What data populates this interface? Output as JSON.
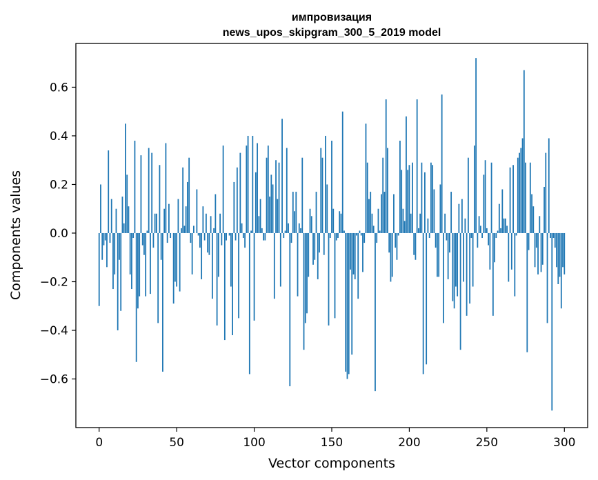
{
  "chart_data": {
    "type": "bar",
    "title": "импровизация",
    "subtitle": "news_upos_skipgram_300_5_2019 model",
    "xlabel": "Vector components",
    "ylabel": "Components values",
    "xlim": [
      -15,
      315
    ],
    "ylim": [
      -0.8,
      0.78
    ],
    "xticks": [
      0,
      50,
      100,
      150,
      200,
      250,
      300
    ],
    "yticks": [
      -0.6,
      -0.4,
      -0.2,
      0.0,
      0.2,
      0.4,
      0.6
    ],
    "xtick_labels": [
      "0",
      "50",
      "100",
      "150",
      "200",
      "250",
      "300"
    ],
    "ytick_labels": [
      "−0.6",
      "−0.4",
      "−0.2",
      "0.0",
      "0.2",
      "0.4",
      "0.6"
    ],
    "bar_color": "#1f77b4",
    "values": [
      -0.3,
      0.2,
      -0.11,
      -0.05,
      -0.03,
      -0.14,
      0.34,
      -0.04,
      0.14,
      -0.23,
      -0.17,
      0.1,
      -0.4,
      -0.11,
      -0.32,
      0.15,
      0.04,
      0.45,
      0.24,
      0.11,
      -0.17,
      -0.23,
      -0.02,
      0.38,
      -0.53,
      -0.31,
      -0.26,
      0.32,
      -0.05,
      -0.09,
      -0.26,
      0.01,
      0.35,
      -0.25,
      0.33,
      -0.06,
      0.08,
      0.08,
      -0.37,
      0.28,
      -0.11,
      -0.57,
      0.1,
      0.37,
      -0.04,
      0.12,
      -0.02,
      0.0,
      -0.29,
      -0.2,
      -0.22,
      0.14,
      -0.24,
      0.02,
      0.27,
      0.03,
      0.11,
      0.21,
      0.31,
      -0.04,
      -0.17,
      0.03,
      0.0,
      0.18,
      -0.01,
      -0.06,
      -0.19,
      0.11,
      -0.03,
      0.08,
      -0.08,
      -0.09,
      0.07,
      -0.27,
      0.02,
      0.16,
      -0.38,
      -0.18,
      0.08,
      -0.05,
      0.36,
      -0.44,
      -0.03,
      0.0,
      -0.01,
      -0.22,
      -0.42,
      0.21,
      -0.03,
      0.27,
      -0.35,
      0.33,
      0.04,
      -0.02,
      -0.06,
      0.36,
      0.4,
      -0.58,
      0.01,
      0.4,
      -0.36,
      0.25,
      0.37,
      0.07,
      0.14,
      0.02,
      -0.03,
      -0.03,
      0.31,
      0.36,
      0.15,
      0.24,
      0.2,
      -0.27,
      0.3,
      0.14,
      0.29,
      -0.22,
      0.47,
      -0.02,
      0.01,
      0.35,
      0.04,
      -0.63,
      -0.04,
      0.17,
      0.09,
      0.17,
      -0.26,
      0.04,
      0.02,
      0.31,
      -0.48,
      -0.37,
      -0.33,
      -0.18,
      0.1,
      0.07,
      -0.13,
      -0.11,
      0.17,
      -0.19,
      -0.08,
      0.35,
      0.31,
      -0.09,
      0.4,
      0.2,
      -0.38,
      -0.02,
      0.38,
      0.1,
      -0.35,
      -0.03,
      -0.02,
      0.09,
      0.08,
      0.5,
      0.01,
      -0.57,
      -0.6,
      -0.58,
      -0.15,
      -0.5,
      -0.17,
      -0.19,
      -0.01,
      -0.27,
      0.01,
      -0.01,
      -0.16,
      -0.04,
      0.45,
      0.29,
      0.14,
      0.17,
      0.08,
      0.03,
      -0.65,
      -0.04,
      0.1,
      0.01,
      0.16,
      0.31,
      0.17,
      0.55,
      0.35,
      -0.08,
      -0.2,
      -0.18,
      0.16,
      -0.06,
      -0.11,
      -0.01,
      0.38,
      0.26,
      0.1,
      0.05,
      0.48,
      0.26,
      0.28,
      0.08,
      0.29,
      -0.09,
      -0.11,
      0.55,
      0.02,
      0.08,
      0.29,
      -0.58,
      0.25,
      -0.54,
      0.06,
      -0.02,
      0.29,
      0.28,
      0.18,
      -0.06,
      -0.18,
      -0.18,
      0.2,
      0.57,
      -0.37,
      0.08,
      -0.03,
      -0.19,
      -0.08,
      0.17,
      -0.28,
      -0.31,
      -0.22,
      -0.26,
      0.12,
      -0.48,
      0.14,
      -0.2,
      0.06,
      -0.34,
      0.31,
      -0.29,
      -0.02,
      -0.22,
      0.36,
      0.72,
      -0.06,
      0.07,
      0.03,
      -0.02,
      0.24,
      0.3,
      0.02,
      -0.05,
      -0.15,
      0.29,
      -0.34,
      -0.12,
      -0.02,
      0.01,
      0.12,
      0.02,
      0.18,
      0.06,
      0.06,
      0.03,
      -0.2,
      0.27,
      -0.15,
      0.28,
      -0.26,
      -0.01,
      0.31,
      0.33,
      0.35,
      0.39,
      0.67,
      0.29,
      -0.49,
      -0.07,
      0.29,
      0.16,
      0.11,
      -0.14,
      -0.06,
      -0.17,
      0.07,
      -0.16,
      -0.13,
      0.19,
      0.33,
      -0.37,
      0.39,
      -0.02,
      -0.73,
      -0.02,
      -0.06,
      -0.14,
      -0.21,
      -0.18,
      -0.31,
      -0.14,
      -0.17
    ]
  }
}
